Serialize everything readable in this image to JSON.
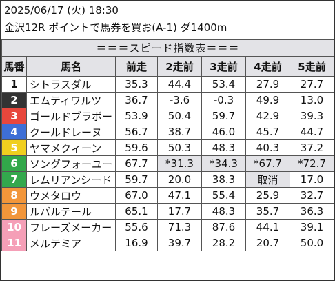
{
  "header": {
    "datetime": "2025/06/17 (火) 18:30",
    "race": "金沢12R ポイントで馬券を買お(A-1) ダ1400m"
  },
  "table": {
    "caption": "＝＝＝スピード指数表＝＝＝",
    "columns": [
      "馬番",
      "馬名",
      "前走",
      "2走前",
      "3走前",
      "4走前",
      "5走前"
    ],
    "waku_colors": {
      "1": {
        "bg": "#ffffff",
        "fg": "#111111"
      },
      "2": {
        "bg": "#333333",
        "fg": "#ffffff"
      },
      "3": {
        "bg": "#e8473c",
        "fg": "#ffffff"
      },
      "4": {
        "bg": "#3e6fd6",
        "fg": "#ffffff"
      },
      "5": {
        "bg": "#f0cf1f",
        "fg": "#ffffff"
      },
      "6": {
        "bg": "#32a84a",
        "fg": "#ffffff"
      },
      "7": {
        "bg": "#33a84d",
        "fg": "#ffffff"
      },
      "8": {
        "bg": "#f2963a",
        "fg": "#ffffff"
      },
      "9": {
        "bg": "#f2963a",
        "fg": "#ffffff"
      },
      "10": {
        "bg": "#f59fb7",
        "fg": "#ffffff"
      },
      "11": {
        "bg": "#f59fb7",
        "fg": "#ffffff"
      }
    },
    "rows": [
      {
        "no": "1",
        "name": "シトラスダル",
        "s1": "35.3",
        "s2": "44.4",
        "s3": "53.4",
        "s4": "27.9",
        "s5": "27.7"
      },
      {
        "no": "2",
        "name": "エムティワルツ",
        "s1": "36.7",
        "s2": "-3.6",
        "s3": "-0.3",
        "s4": "49.9",
        "s5": "13.0"
      },
      {
        "no": "3",
        "name": "ゴールドブラボー",
        "s1": "53.9",
        "s2": "50.4",
        "s3": "59.7",
        "s4": "42.9",
        "s5": "39.3"
      },
      {
        "no": "4",
        "name": "クールドレーヌ",
        "s1": "56.7",
        "s2": "38.7",
        "s3": "46.0",
        "s4": "45.7",
        "s5": "44.7"
      },
      {
        "no": "5",
        "name": "ヤマメクィーン",
        "s1": "59.6",
        "s2": "50.3",
        "s3": "48.3",
        "s4": "40.3",
        "s5": "37.2"
      },
      {
        "no": "6",
        "name": "ソングフォーユー",
        "s1": "67.7",
        "s2": "*31.3",
        "s3": "*34.3",
        "s4": "*67.7",
        "s5": "*72.7"
      },
      {
        "no": "7",
        "name": "レムリアンシード",
        "s1": "59.7",
        "s2": "20.0",
        "s3": "38.3",
        "s4": "取消",
        "s5": "17.0"
      },
      {
        "no": "8",
        "name": "ウメタロウ",
        "s1": "67.0",
        "s2": "47.1",
        "s3": "55.4",
        "s4": "25.9",
        "s5": "32.7"
      },
      {
        "no": "9",
        "name": "ルパルテール",
        "s1": "65.1",
        "s2": "17.7",
        "s3": "48.3",
        "s4": "35.7",
        "s5": "36.3"
      },
      {
        "no": "10",
        "name": "フレーズメーカー",
        "s1": "55.6",
        "s2": "71.3",
        "s3": "87.6",
        "s4": "44.1",
        "s5": "39.1"
      },
      {
        "no": "11",
        "name": "メルテミア",
        "s1": "16.9",
        "s2": "39.7",
        "s3": "28.2",
        "s4": "20.7",
        "s5": "50.0"
      }
    ],
    "shaded_cells": {
      "6": [
        "s2",
        "s3",
        "s4",
        "s5"
      ],
      "7": [
        "s4"
      ]
    }
  }
}
